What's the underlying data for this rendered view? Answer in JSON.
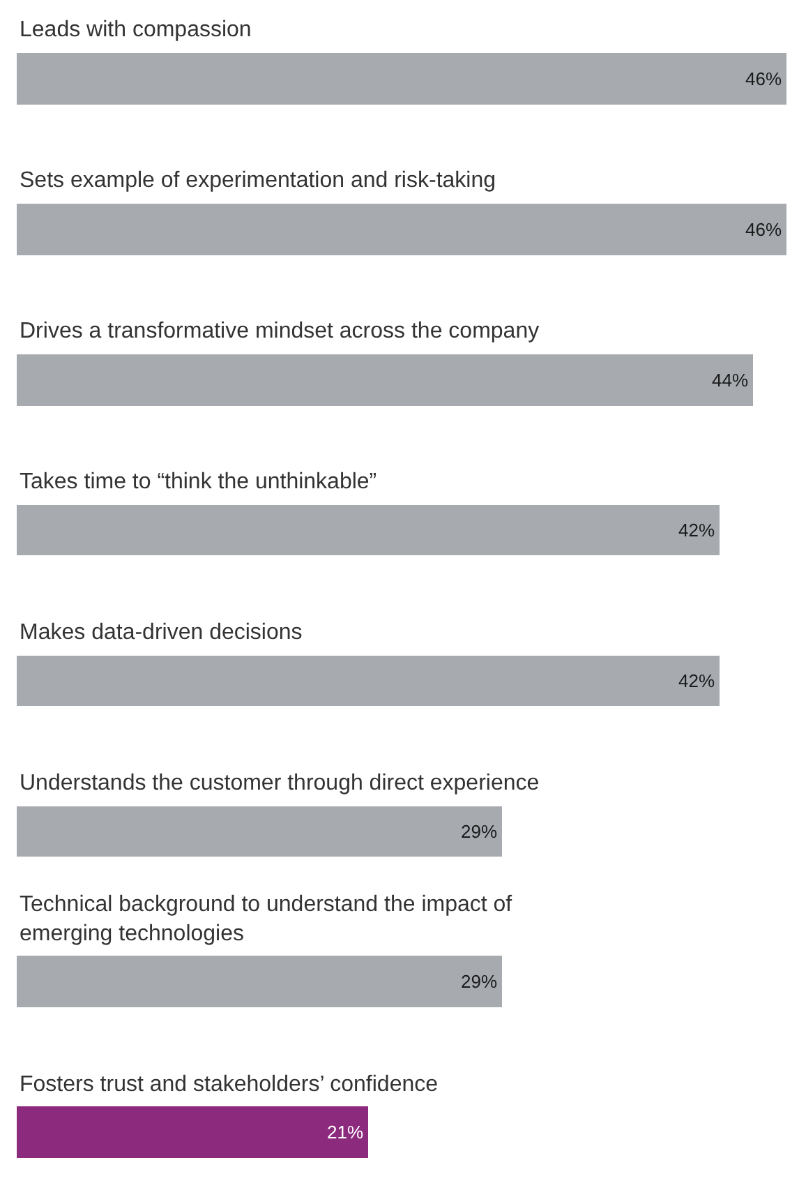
{
  "chart_data": {
    "type": "bar",
    "orientation": "horizontal",
    "categories": [
      "Leads with compassion",
      "Sets example of experimentation and risk-taking",
      "Drives a transformative mindset across the company",
      "Takes time to “think the unthinkable”",
      "Makes data-driven decisions",
      "Understands the customer through direct experience",
      "Technical background to understand the impact of emerging technologies",
      "Fosters trust and stakeholders’ confidence"
    ],
    "values": [
      46,
      46,
      44,
      42,
      42,
      29,
      29,
      21
    ],
    "colors": [
      "#a7abb0",
      "#a7abb0",
      "#a7abb0",
      "#a7abb0",
      "#a7abb0",
      "#a7abb0",
      "#a7abb0",
      "#8c2a7e"
    ],
    "value_labels": [
      "46%",
      "46%",
      "44%",
      "42%",
      "42%",
      "29%",
      "29%",
      "21%"
    ]
  }
}
